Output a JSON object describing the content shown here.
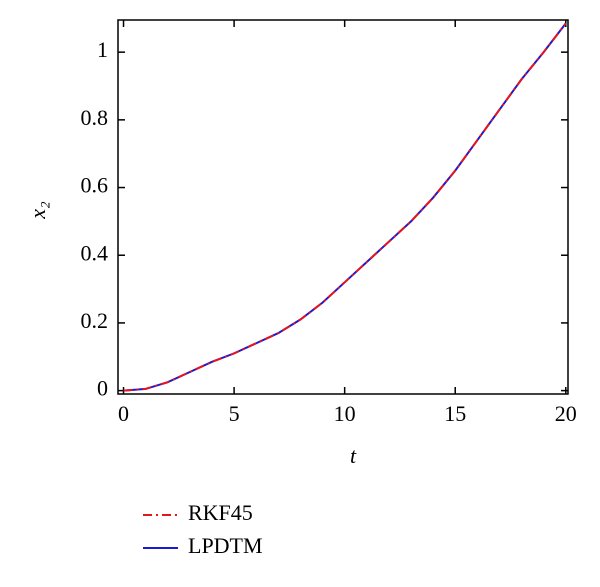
{
  "chart_data": {
    "type": "line",
    "x_label": "t",
    "y_label": "x₂",
    "x": [
      0,
      1,
      2,
      3,
      4,
      5,
      6,
      7,
      8,
      9,
      10,
      11,
      12,
      13,
      14,
      15,
      16,
      17,
      18,
      19,
      20
    ],
    "series": [
      {
        "name": "RKF45",
        "color": "#e8141c",
        "dash": "dashdot",
        "values": [
          0,
          0.005,
          0.025,
          0.055,
          0.085,
          0.11,
          0.14,
          0.17,
          0.21,
          0.26,
          0.32,
          0.38,
          0.44,
          0.5,
          0.57,
          0.65,
          0.74,
          0.83,
          0.92,
          1.0,
          1.085
        ]
      },
      {
        "name": "LPDTM",
        "color": "#1a1ad4",
        "dash": "solid",
        "values": [
          0,
          0.005,
          0.025,
          0.055,
          0.085,
          0.11,
          0.14,
          0.17,
          0.21,
          0.26,
          0.32,
          0.38,
          0.44,
          0.5,
          0.57,
          0.65,
          0.74,
          0.83,
          0.92,
          1.0,
          1.085
        ]
      }
    ],
    "xlim": [
      -0.25,
      20.1
    ],
    "ylim": [
      -0.01,
      1.095
    ],
    "xticks": [
      0,
      5,
      10,
      15,
      20
    ],
    "yticks": [
      0,
      0.2,
      0.4,
      0.6,
      0.8,
      1
    ],
    "legend": "below"
  }
}
